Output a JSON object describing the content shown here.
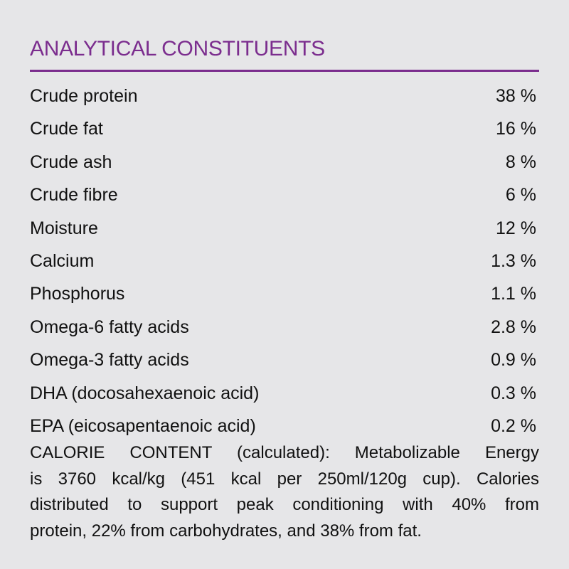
{
  "title": "ANALYTICAL CONSTITUENTS",
  "colors": {
    "accent": "#7b2d8e",
    "background": "#e6e6e8"
  },
  "constituents": [
    {
      "label": "Crude protein",
      "value": "38 %"
    },
    {
      "label": "Crude fat",
      "value": "16 %"
    },
    {
      "label": "Crude ash",
      "value": "8 %"
    },
    {
      "label": "Crude fibre",
      "value": "6 %"
    },
    {
      "label": "Moisture",
      "value": "12 %"
    },
    {
      "label": "Calcium",
      "value": "1.3 %"
    },
    {
      "label": "Phosphorus",
      "value": "1.1 %"
    },
    {
      "label": "Omega-6 fatty acids",
      "value": "2.8 %"
    },
    {
      "label": "Omega-3 fatty acids",
      "value": "0.9 %"
    },
    {
      "label": "DHA (docosahexaenoic acid)",
      "value": "0.3 %"
    },
    {
      "label": "EPA (eicosapentaenoic acid)",
      "value": "0.2 %"
    }
  ],
  "calorie_content": {
    "lines": [
      "CALORIE CONTENT (calculated): Metabolizable Energy",
      "is 3760 kcal/kg (451 kcal per 250ml/120g cup). Calories",
      "distributed to support peak conditioning with 40% from",
      "protein, 22% from carbohydrates, and 38% from fat."
    ]
  }
}
